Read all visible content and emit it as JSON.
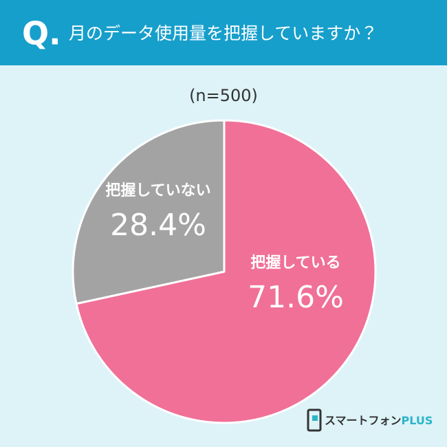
{
  "chart_data": {
    "type": "pie",
    "question_label": "Q.",
    "title": "月のデータ使用量を把握していますか？",
    "subtitle": "(n=500)",
    "categories": [
      "把握している",
      "把握していない"
    ],
    "values": [
      71.6,
      28.4
    ],
    "value_labels": [
      "71.6%",
      "28.4%"
    ],
    "colors": [
      "#f07098",
      "#a3a3a3"
    ],
    "brand": {
      "name": "スマートフォン",
      "suffix": "PLUS"
    }
  }
}
